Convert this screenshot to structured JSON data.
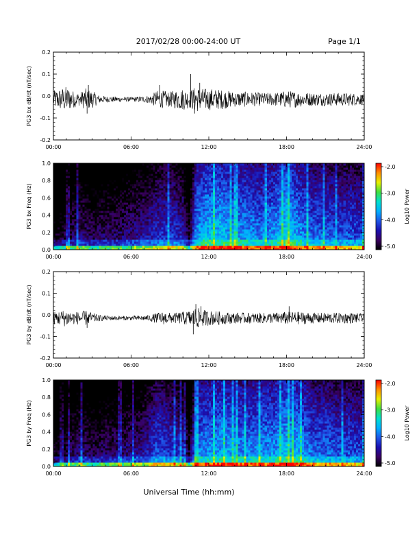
{
  "header": {
    "title": "2017/02/28  00:00-24:00 UT",
    "page": "Page 1/1"
  },
  "footer": {
    "xlabel": "Universal Time (hh:mm)"
  },
  "colors": {
    "trace": "#000000",
    "colormap": [
      "#000000",
      "#3a0060",
      "#1a10b0",
      "#1f56e8",
      "#00b0ff",
      "#00e0d0",
      "#40e040",
      "#e8f000",
      "#ff9000",
      "#ff0000"
    ]
  },
  "chart_data": [
    {
      "type": "line",
      "ylabel": "PG3 bx dB/dt (nT/sec)",
      "xticks": [
        "00:00",
        "06:00",
        "12:00",
        "18:00",
        "24:00"
      ],
      "xlim": [
        0,
        24
      ],
      "ylim": [
        -0.2,
        0.2
      ],
      "yticks": [
        "0.2",
        "0.1",
        "0.0",
        "-0.1",
        "-0.2"
      ],
      "envelope_x": [
        0,
        0.5,
        1,
        1.5,
        2,
        2.5,
        3,
        3.5,
        4,
        5,
        6,
        7,
        7.5,
        8,
        8.5,
        9,
        9.5,
        10,
        10.5,
        11,
        11.5,
        12,
        13,
        14,
        15,
        16,
        17,
        18,
        19,
        20,
        21,
        22,
        23,
        24
      ],
      "envelope_amp": [
        0.04,
        0.05,
        0.06,
        0.04,
        0.03,
        0.05,
        0.04,
        0.02,
        0.015,
        0.012,
        0.01,
        0.015,
        0.02,
        0.04,
        0.04,
        0.035,
        0.045,
        0.05,
        0.04,
        0.06,
        0.05,
        0.05,
        0.045,
        0.035,
        0.035,
        0.03,
        0.03,
        0.04,
        0.035,
        0.03,
        0.03,
        0.03,
        0.03,
        0.025
      ],
      "spikes": [
        [
          2.6,
          -0.08
        ],
        [
          2.7,
          0.05
        ],
        [
          10.6,
          0.1
        ],
        [
          10.9,
          -0.08
        ],
        [
          11.3,
          0.06
        ],
        [
          8.2,
          0.05
        ]
      ]
    },
    {
      "type": "heatmap",
      "ylabel": "PG3 bx Freq (Hz)",
      "xticks": [
        "00:00",
        "06:00",
        "12:00",
        "18:00",
        "24:00"
      ],
      "xlim": [
        0,
        24
      ],
      "ylim": [
        0,
        1
      ],
      "yticks": [
        "1.0",
        "0.8",
        "0.6",
        "0.4",
        "0.2",
        "0.0"
      ],
      "colorbar": {
        "label": "Log10 Power",
        "range": [
          -5,
          -2
        ],
        "ticks": [
          "-2.0",
          "-3.0",
          "-4.0",
          "-5.0"
        ]
      },
      "activity_x": [
        0,
        1,
        2,
        3,
        4,
        5,
        6,
        7,
        8,
        9,
        10,
        10.5,
        11,
        12,
        13,
        14,
        15,
        16,
        17,
        18,
        19,
        20,
        21,
        22,
        23,
        24
      ],
      "activity_level": [
        -4.9,
        -4.7,
        -4.4,
        -4.6,
        -4.5,
        -4.5,
        -4.4,
        -4.3,
        -4.1,
        -4.0,
        -4.2,
        -4.7,
        -3.6,
        -3.4,
        -3.4,
        -3.6,
        -3.6,
        -3.7,
        -3.6,
        -3.3,
        -3.6,
        -3.8,
        -3.8,
        -3.9,
        -3.9,
        -4.0
      ]
    },
    {
      "type": "line",
      "ylabel": "PG3 by dB/dt (nT/sec)",
      "xticks": [
        "00:00",
        "06:00",
        "12:00",
        "18:00",
        "24:00"
      ],
      "xlim": [
        0,
        24
      ],
      "ylim": [
        -0.2,
        0.2
      ],
      "yticks": [
        "0.2",
        "0.1",
        "0.0",
        "-0.1",
        "-0.2"
      ],
      "envelope_x": [
        0,
        0.5,
        1,
        1.5,
        2,
        2.5,
        3,
        3.5,
        4,
        5,
        6,
        7,
        7.5,
        8,
        8.5,
        9,
        9.5,
        10,
        10.5,
        11,
        11.5,
        12,
        13,
        14,
        15,
        16,
        17,
        18,
        19,
        20,
        21,
        22,
        23,
        24
      ],
      "envelope_amp": [
        0.03,
        0.035,
        0.04,
        0.03,
        0.03,
        0.035,
        0.025,
        0.015,
        0.012,
        0.01,
        0.01,
        0.012,
        0.015,
        0.025,
        0.03,
        0.025,
        0.025,
        0.03,
        0.035,
        0.05,
        0.04,
        0.035,
        0.03,
        0.025,
        0.025,
        0.025,
        0.025,
        0.03,
        0.03,
        0.025,
        0.025,
        0.025,
        0.025,
        0.02
      ],
      "spikes": [
        [
          2.6,
          -0.06
        ],
        [
          10.8,
          -0.09
        ],
        [
          11.0,
          0.05
        ],
        [
          11.4,
          0.04
        ],
        [
          18.2,
          0.04
        ]
      ]
    },
    {
      "type": "heatmap",
      "ylabel": "PG3 by Freq (Hz)",
      "xticks": [
        "00:00",
        "06:00",
        "12:00",
        "18:00",
        "24:00"
      ],
      "xlim": [
        0,
        24
      ],
      "ylim": [
        0,
        1
      ],
      "yticks": [
        "1.0",
        "0.8",
        "0.6",
        "0.4",
        "0.2",
        "0.0"
      ],
      "colorbar": {
        "label": "Log10 Power",
        "range": [
          -5,
          -2
        ],
        "ticks": [
          "-2.0",
          "-3.0",
          "-4.0",
          "-5.0"
        ]
      },
      "activity_x": [
        0,
        1,
        2,
        3,
        4,
        5,
        6,
        7,
        8,
        9,
        10,
        10.5,
        11,
        12,
        13,
        14,
        15,
        16,
        17,
        18,
        19,
        20,
        21,
        22,
        23,
        24
      ],
      "activity_level": [
        -4.9,
        -4.7,
        -4.4,
        -4.6,
        -4.5,
        -4.5,
        -4.4,
        -4.3,
        -3.9,
        -4.0,
        -4.2,
        -4.7,
        -3.7,
        -3.6,
        -3.5,
        -3.6,
        -3.7,
        -3.6,
        -3.6,
        -3.4,
        -3.5,
        -3.8,
        -3.8,
        -3.9,
        -3.9,
        -4.0
      ]
    }
  ]
}
